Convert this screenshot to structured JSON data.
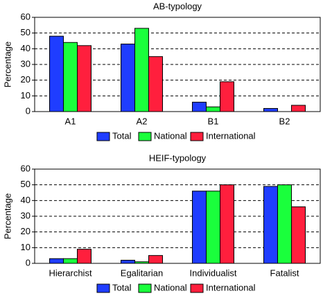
{
  "chart_data": [
    {
      "type": "bar",
      "title": "AB-typology",
      "y_label": "Percentage",
      "categories": [
        "A1",
        "A2",
        "B1",
        "B2"
      ],
      "series": [
        {
          "name": "Total",
          "color": "#1f3dff",
          "values": [
            48,
            43,
            6,
            2
          ]
        },
        {
          "name": "National",
          "color": "#1aff3c",
          "values": [
            44,
            53,
            3,
            0
          ]
        },
        {
          "name": "International",
          "color": "#ff1f3d",
          "values": [
            42,
            35,
            19,
            4
          ]
        }
      ],
      "ylim": [
        0,
        60
      ],
      "yticks": [
        0,
        10,
        20,
        30,
        40,
        50,
        60
      ],
      "grid": true
    },
    {
      "type": "bar",
      "title": "HEIF-typology",
      "y_label": "Percentage",
      "categories": [
        "Hierarchist",
        "Egalitarian",
        "Individualist",
        "Fatalist"
      ],
      "series": [
        {
          "name": "Total",
          "color": "#1f3dff",
          "values": [
            3,
            2,
            46,
            49
          ]
        },
        {
          "name": "National",
          "color": "#1aff3c",
          "values": [
            3,
            1,
            46,
            50
          ]
        },
        {
          "name": "International",
          "color": "#ff1f3d",
          "values": [
            9,
            5,
            50,
            36
          ]
        }
      ],
      "ylim": [
        0,
        60
      ],
      "yticks": [
        0,
        10,
        20,
        30,
        40,
        50,
        60
      ],
      "grid": true
    }
  ]
}
